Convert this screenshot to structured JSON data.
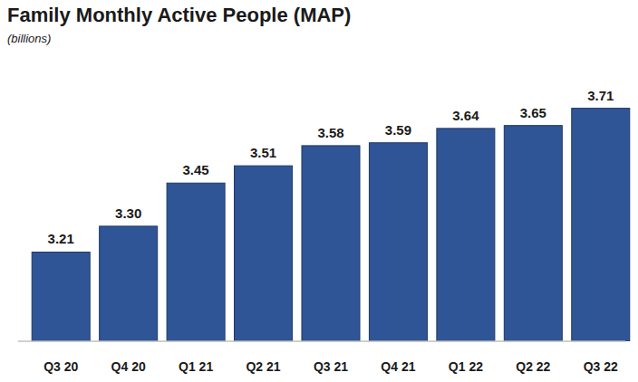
{
  "chart_data": {
    "type": "bar",
    "title": "Family Monthly Active People (MAP)",
    "subtitle": "(billions)",
    "categories": [
      "Q3 20",
      "Q4 20",
      "Q1 21",
      "Q2 21",
      "Q3 21",
      "Q4 21",
      "Q1 22",
      "Q2 22",
      "Q3 22"
    ],
    "values": [
      3.21,
      3.3,
      3.45,
      3.51,
      3.58,
      3.59,
      3.64,
      3.65,
      3.71
    ],
    "color": "#2f5597",
    "ylim": [
      2.9,
      3.8
    ],
    "grid": false,
    "data_labels": true,
    "tick_labels": "x"
  }
}
